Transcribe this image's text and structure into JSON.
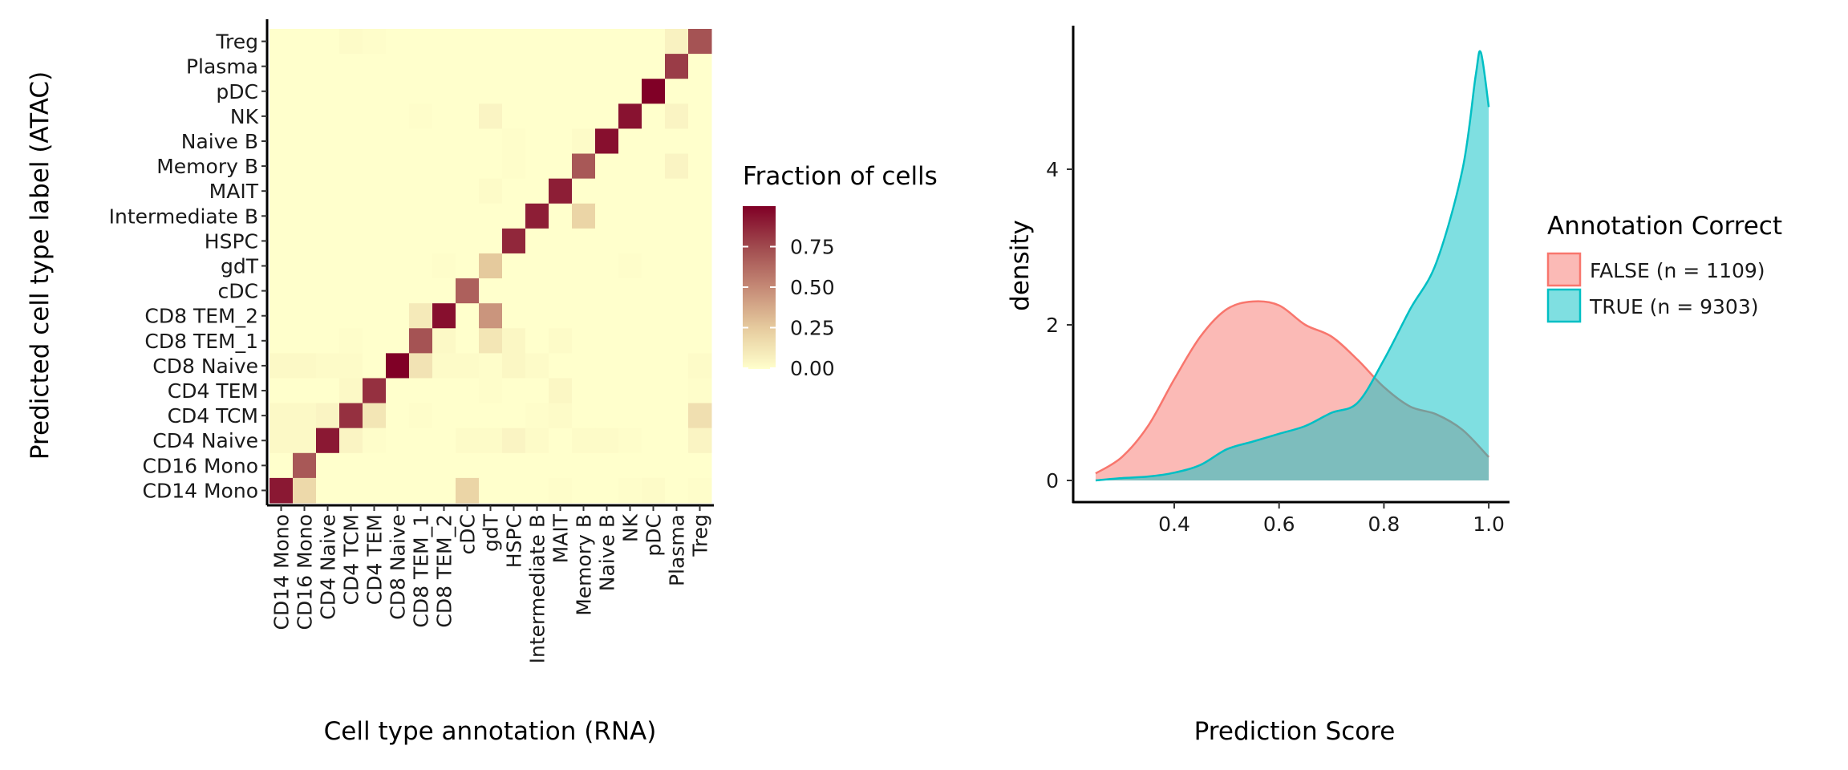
{
  "chart_data": [
    {
      "type": "heatmap",
      "xlabel": "Cell type annotation (RNA)",
      "ylabel": "Predicted cell type label (ATAC)",
      "x_categories": [
        "CD14 Mono",
        "CD16 Mono",
        "CD4 Naive",
        "CD4 TCM",
        "CD4 TEM",
        "CD8 Naive",
        "CD8 TEM_1",
        "CD8 TEM_2",
        "cDC",
        "gdT",
        "HSPC",
        "Intermediate B",
        "MAIT",
        "Memory B",
        "Naive B",
        "NK",
        "pDC",
        "Plasma",
        "Treg"
      ],
      "y_categories_top_to_bottom": [
        "Treg",
        "Plasma",
        "pDC",
        "NK",
        "Naive B",
        "Memory B",
        "MAIT",
        "Intermediate B",
        "HSPC",
        "gdT",
        "cDC",
        "CD8 TEM_2",
        "CD8 TEM_1",
        "CD8 Naive",
        "CD4 TEM",
        "CD4 TCM",
        "CD4 Naive",
        "CD16 Mono",
        "CD14 Mono"
      ],
      "values": [
        [
          0,
          0,
          0,
          0.02,
          0.01,
          0,
          0,
          0,
          0,
          0,
          0,
          0,
          0,
          0,
          0,
          0,
          0,
          0.06,
          0.7
        ],
        [
          0,
          0,
          0,
          0,
          0,
          0,
          0,
          0,
          0,
          0,
          0,
          0,
          0,
          0,
          0,
          0,
          0,
          0.78,
          0
        ],
        [
          0,
          0,
          0,
          0,
          0,
          0,
          0,
          0,
          0,
          0,
          0,
          0,
          0,
          0,
          0,
          0,
          0.98,
          0,
          0
        ],
        [
          0,
          0,
          0,
          0,
          0,
          0,
          0.01,
          0,
          0,
          0.05,
          0,
          0,
          0,
          0,
          0,
          0.92,
          0,
          0.05,
          0
        ],
        [
          0,
          0,
          0,
          0,
          0,
          0,
          0,
          0,
          0,
          0,
          0.01,
          0,
          0,
          0.02,
          0.93,
          0,
          0,
          0,
          0
        ],
        [
          0,
          0,
          0,
          0,
          0,
          0,
          0,
          0,
          0,
          0,
          0.01,
          0,
          0,
          0.68,
          0,
          0,
          0,
          0.05,
          0
        ],
        [
          0,
          0,
          0,
          0,
          0,
          0,
          0,
          0,
          0,
          0.02,
          0,
          0,
          0.88,
          0,
          0,
          0,
          0,
          0,
          0
        ],
        [
          0,
          0,
          0,
          0,
          0,
          0,
          0,
          0,
          0,
          0,
          0,
          0.88,
          0,
          0.2,
          0,
          0,
          0,
          0,
          0
        ],
        [
          0,
          0,
          0,
          0,
          0,
          0,
          0,
          0,
          0,
          0,
          0.85,
          0,
          0,
          0,
          0,
          0,
          0,
          0,
          0
        ],
        [
          0,
          0,
          0,
          0,
          0,
          0,
          0,
          0.01,
          0,
          0.25,
          0,
          0,
          0,
          0,
          0,
          0.01,
          0,
          0,
          0
        ],
        [
          0,
          0,
          0,
          0,
          0,
          0,
          0,
          0,
          0.65,
          0,
          0,
          0,
          0,
          0,
          0,
          0,
          0,
          0,
          0
        ],
        [
          0,
          0,
          0,
          0,
          0,
          0,
          0.1,
          0.93,
          0,
          0.45,
          0,
          0,
          0,
          0,
          0,
          0,
          0,
          0,
          0
        ],
        [
          0,
          0,
          0,
          0.01,
          0,
          0,
          0.7,
          0.03,
          0,
          0.12,
          0.04,
          0,
          0.02,
          0,
          0,
          0,
          0,
          0,
          0
        ],
        [
          0.03,
          0.03,
          0.02,
          0.02,
          0,
          1.0,
          0.13,
          0.02,
          0.02,
          0.01,
          0.04,
          0.02,
          0,
          0,
          0,
          0,
          0,
          0,
          0.02
        ],
        [
          0,
          0,
          0,
          0.03,
          0.82,
          0,
          0,
          0,
          0,
          0.01,
          0,
          0,
          0.04,
          0,
          0,
          0,
          0,
          0,
          0.01
        ],
        [
          0.03,
          0.03,
          0.05,
          0.82,
          0.12,
          0,
          0.01,
          0,
          0,
          0,
          0,
          0.01,
          0.02,
          0,
          0,
          0,
          0,
          0,
          0.15
        ],
        [
          0.03,
          0.03,
          0.9,
          0.05,
          0.01,
          0,
          0,
          0,
          0.02,
          0.02,
          0.05,
          0.02,
          0,
          0.02,
          0.02,
          0.01,
          0,
          0,
          0.05
        ],
        [
          0,
          0.68,
          0,
          0,
          0,
          0,
          0,
          0,
          0,
          0,
          0,
          0,
          0,
          0,
          0,
          0,
          0,
          0,
          0
        ],
        [
          0.9,
          0.18,
          0,
          0,
          0,
          0,
          0,
          0,
          0.2,
          0,
          0,
          0,
          0.01,
          0,
          0,
          0.01,
          0.02,
          0,
          0.01
        ]
      ],
      "colorbar": {
        "title": "Fraction of cells",
        "ticks": [
          "0.00",
          "0.25",
          "0.50",
          "0.75"
        ],
        "tick_values": [
          0,
          0.25,
          0.5,
          0.75
        ],
        "range": [
          0,
          0.98
        ],
        "low_color": "#FFFFCC",
        "high_color": "#800026"
      }
    },
    {
      "type": "area",
      "xlabel": "Prediction Score",
      "ylabel": "density",
      "x_ticks": [
        "0.4",
        "0.6",
        "0.8",
        "1.0"
      ],
      "x_tick_values": [
        0.4,
        0.6,
        0.8,
        1.0
      ],
      "y_ticks": [
        "0",
        "2",
        "4"
      ],
      "y_tick_values": [
        0,
        2,
        4
      ],
      "legend": {
        "title": "Annotation Correct",
        "placement": "right"
      },
      "series": [
        {
          "name": "FALSE (n = 1109)",
          "color": "#F8766D",
          "x": [
            0.25,
            0.3,
            0.35,
            0.4,
            0.45,
            0.5,
            0.55,
            0.6,
            0.65,
            0.7,
            0.75,
            0.8,
            0.85,
            0.9,
            0.95,
            1.0
          ],
          "y": [
            0.09,
            0.3,
            0.7,
            1.3,
            1.85,
            2.2,
            2.3,
            2.25,
            2.0,
            1.85,
            1.55,
            1.2,
            0.95,
            0.85,
            0.65,
            0.3
          ]
        },
        {
          "name": "TRUE (n = 9303)",
          "color": "#00BFC4",
          "x": [
            0.25,
            0.3,
            0.35,
            0.4,
            0.45,
            0.5,
            0.55,
            0.6,
            0.65,
            0.7,
            0.75,
            0.8,
            0.85,
            0.9,
            0.95,
            0.975,
            0.985,
            1.0
          ],
          "y": [
            0,
            0.03,
            0.05,
            0.1,
            0.2,
            0.4,
            0.5,
            0.6,
            0.7,
            0.87,
            1.0,
            1.55,
            2.2,
            2.8,
            4.0,
            5.2,
            5.5,
            4.8
          ]
        }
      ]
    }
  ]
}
